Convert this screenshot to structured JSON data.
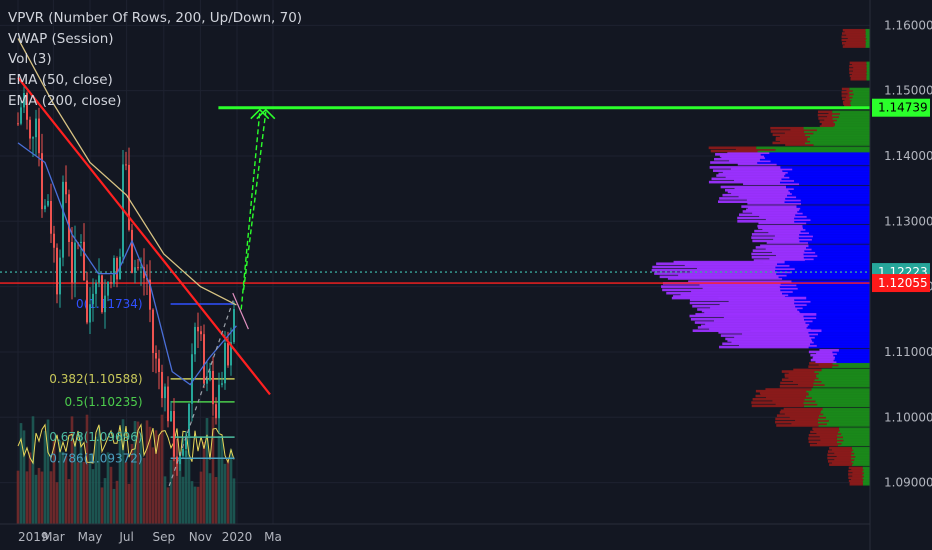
{
  "indicators": [
    "VPVR (Number Of Rows, 200, Up/Down, 70)",
    "VWAP (Session)",
    "Vol (3)",
    "EMA (50, close)",
    "EMA (200, close)"
  ],
  "colors": {
    "background": "#131722",
    "up_candle": "#26a69a",
    "down_candle": "#ef5350",
    "trendline": "#ff2020",
    "ema50": "#4a6fd9",
    "ema200": "#d8c383",
    "vpvr_up_value_area": "#0000ff",
    "vpvr_down_value_area": "#9b30ff",
    "vpvr_up_outside": "#1a8a1a",
    "vpvr_down_outside": "#8b1a1a",
    "target_green": "#2bff2b",
    "fib_blue": "#3050ff"
  },
  "chart_data": {
    "type": "candlestick",
    "symbol_pair_scale": "price",
    "ylim": [
      1.0855,
      1.1625
    ],
    "y_ticks": [
      "1.16000",
      "1.15000",
      "1.14000",
      "1.13000",
      "1.12000",
      "1.11000",
      "1.10000",
      "1.09000"
    ],
    "y_tick_values": [
      1.16,
      1.15,
      1.14,
      1.13,
      1.12,
      1.11,
      1.1,
      1.09
    ],
    "x_ticks": [
      "2019",
      "Mar",
      "May",
      "Jul",
      "Sep",
      "Nov",
      "2020",
      "Ma"
    ],
    "x_tick_dates": [
      "2019-01-01",
      "2019-03-01",
      "2019-05-01",
      "2019-07-01",
      "2019-09-01",
      "2019-11-01",
      "2020-01-01",
      "2020-03-01"
    ],
    "price_labels": [
      {
        "text": "1.14739",
        "value": 1.14739,
        "style": "green"
      },
      {
        "text": "1.12223",
        "value": 1.12223,
        "style": "teal"
      },
      {
        "text": "1.12055",
        "value": 1.12055,
        "style": "red"
      }
    ],
    "fib_levels": [
      {
        "label": "0(1.11734)",
        "value": 1.11734,
        "color": "#3050ff"
      },
      {
        "label": "0.382(1.10588)",
        "value": 1.10588,
        "color": "#c8c85a"
      },
      {
        "label": "0.5(1.10235)",
        "value": 1.10235,
        "color": "#4ccc4c"
      },
      {
        "label": "0.678(1.09696)",
        "value": 1.09696,
        "color": "#4cbba0"
      },
      {
        "label": "0.786(1.09372)",
        "value": 1.09372,
        "color": "#4aa0c0"
      }
    ],
    "horizontal_lines": [
      {
        "value": 1.12223,
        "style": "dotted",
        "color": "#3aa69a"
      },
      {
        "value": 1.12055,
        "style": "solid",
        "color": "#ff2020"
      },
      {
        "value": 1.14739,
        "style": "solid",
        "color": "#2bff2b",
        "from_date": "2019-12-01"
      }
    ],
    "trendlines": [
      {
        "from": {
          "date": "2019-01-01",
          "price": 1.152
        },
        "to": {
          "date": "2020-02-25",
          "price": 1.1035
        },
        "color": "#ff2020"
      }
    ],
    "close_path_points": [
      {
        "date": "2019-01-01",
        "close": 1.145
      },
      {
        "date": "2019-01-10",
        "close": 1.15
      },
      {
        "date": "2019-01-20",
        "close": 1.141
      },
      {
        "date": "2019-01-31",
        "close": 1.148
      },
      {
        "date": "2019-02-12",
        "close": 1.131
      },
      {
        "date": "2019-02-20",
        "close": 1.134
      },
      {
        "date": "2019-03-07",
        "close": 1.121
      },
      {
        "date": "2019-03-20",
        "close": 1.137
      },
      {
        "date": "2019-04-01",
        "close": 1.122
      },
      {
        "date": "2019-04-17",
        "close": 1.129
      },
      {
        "date": "2019-04-26",
        "close": 1.114
      },
      {
        "date": "2019-05-10",
        "close": 1.124
      },
      {
        "date": "2019-05-23",
        "close": 1.117
      },
      {
        "date": "2019-06-07",
        "close": 1.124
      },
      {
        "date": "2019-06-18",
        "close": 1.119
      },
      {
        "date": "2019-06-25",
        "close": 1.139
      },
      {
        "date": "2019-07-01",
        "close": 1.137
      },
      {
        "date": "2019-07-10",
        "close": 1.124
      },
      {
        "date": "2019-07-25",
        "close": 1.122
      },
      {
        "date": "2019-08-05",
        "close": 1.121
      },
      {
        "date": "2019-08-15",
        "close": 1.109
      },
      {
        "date": "2019-08-28",
        "close": 1.106
      },
      {
        "date": "2019-09-05",
        "close": 1.103
      },
      {
        "date": "2019-09-15",
        "close": 1.097
      },
      {
        "date": "2019-10-01",
        "close": 1.091
      },
      {
        "date": "2019-10-10",
        "close": 1.099
      },
      {
        "date": "2019-10-21",
        "close": 1.114
      },
      {
        "date": "2019-10-31",
        "close": 1.116
      },
      {
        "date": "2019-11-08",
        "close": 1.102
      },
      {
        "date": "2019-11-19",
        "close": 1.106
      },
      {
        "date": "2019-11-29",
        "close": 1.1
      },
      {
        "date": "2019-12-10",
        "close": 1.109
      },
      {
        "date": "2019-12-20",
        "close": 1.107
      },
      {
        "date": "2019-12-31",
        "close": 1.121
      }
    ],
    "ema50_points": [
      {
        "date": "2019-01-01",
        "value": 1.142
      },
      {
        "date": "2019-02-15",
        "value": 1.139
      },
      {
        "date": "2019-04-01",
        "value": 1.128
      },
      {
        "date": "2019-05-15",
        "value": 1.122
      },
      {
        "date": "2019-06-15",
        "value": 1.122
      },
      {
        "date": "2019-07-10",
        "value": 1.127
      },
      {
        "date": "2019-08-10",
        "value": 1.12
      },
      {
        "date": "2019-09-15",
        "value": 1.107
      },
      {
        "date": "2019-10-15",
        "value": 1.105
      },
      {
        "date": "2019-11-15",
        "value": 1.109
      },
      {
        "date": "2019-12-31",
        "value": 1.114
      }
    ],
    "ema200_points": [
      {
        "date": "2019-01-01",
        "value": 1.158
      },
      {
        "date": "2019-03-01",
        "value": 1.148
      },
      {
        "date": "2019-05-01",
        "value": 1.139
      },
      {
        "date": "2019-07-01",
        "value": 1.134
      },
      {
        "date": "2019-09-01",
        "value": 1.125
      },
      {
        "date": "2019-11-01",
        "value": 1.12
      },
      {
        "date": "2019-12-31",
        "value": 1.1172
      }
    ],
    "volume_profile_rows": [
      {
        "price": 1.158,
        "up": 5,
        "down": 25
      },
      {
        "price": 1.153,
        "up": 4,
        "down": 18
      },
      {
        "price": 1.149,
        "up": 22,
        "down": 8
      },
      {
        "price": 1.1455,
        "up": 40,
        "down": 15
      },
      {
        "price": 1.143,
        "up": 70,
        "down": 35
      },
      {
        "price": 1.14,
        "up": 120,
        "down": 50
      },
      {
        "price": 1.137,
        "up": 95,
        "down": 75
      },
      {
        "price": 1.134,
        "up": 90,
        "down": 70
      },
      {
        "price": 1.131,
        "up": 80,
        "down": 60
      },
      {
        "price": 1.128,
        "up": 75,
        "down": 50
      },
      {
        "price": 1.125,
        "up": 70,
        "down": 55
      },
      {
        "price": 1.1225,
        "up": 100,
        "down": 130
      },
      {
        "price": 1.1195,
        "up": 95,
        "down": 125
      },
      {
        "price": 1.117,
        "up": 80,
        "down": 110
      },
      {
        "price": 1.1145,
        "up": 70,
        "down": 120
      },
      {
        "price": 1.112,
        "up": 65,
        "down": 95
      },
      {
        "price": 1.109,
        "up": 40,
        "down": 25
      },
      {
        "price": 1.106,
        "up": 60,
        "down": 35
      },
      {
        "price": 1.103,
        "up": 70,
        "down": 55
      },
      {
        "price": 1.1,
        "up": 55,
        "down": 45
      },
      {
        "price": 1.097,
        "up": 35,
        "down": 30
      },
      {
        "price": 1.094,
        "up": 20,
        "down": 25
      },
      {
        "price": 1.091,
        "up": 8,
        "down": 15
      }
    ],
    "value_area_range": [
      1.1085,
      1.1405
    ],
    "target_arrows": [
      {
        "from": {
          "date": "2020-01-08",
          "price": 1.1165
        },
        "to": {
          "date": "2020-02-08",
          "price": 1.14739
        }
      },
      {
        "from": {
          "date": "2020-01-12",
          "price": 1.1195
        },
        "to": {
          "date": "2020-02-18",
          "price": 1.14739
        }
      }
    ],
    "projection_lines": [
      {
        "from": {
          "date": "2019-09-10",
          "price": 1.0895
        },
        "to": {
          "date": "2019-12-28",
          "price": 1.1185
        },
        "style": "dashed",
        "color": "#9aa0a8"
      },
      {
        "from": {
          "date": "2019-12-25",
          "price": 1.119
        },
        "to": {
          "date": "2020-01-20",
          "price": 1.1135
        },
        "style": "solid",
        "color": "#e090c0"
      }
    ]
  }
}
